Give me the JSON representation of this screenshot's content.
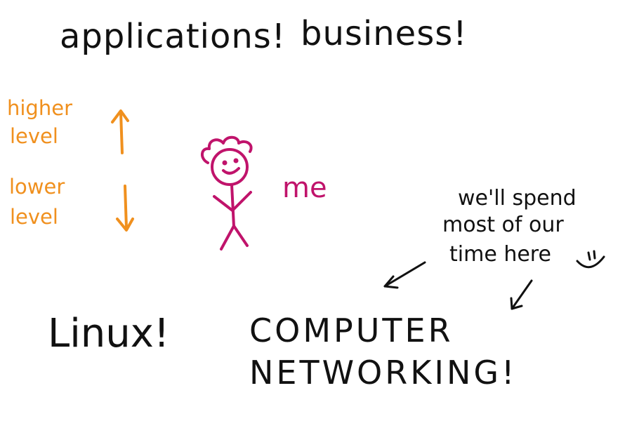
{
  "top": {
    "left": "applications!",
    "right": "business!"
  },
  "levels": {
    "higher_line1": "higher",
    "higher_line2": "level",
    "lower_line1": "lower",
    "lower_line2": "level"
  },
  "me_label": "me",
  "note": {
    "line1": "we'll spend",
    "line2": "most of our",
    "line3": "time here"
  },
  "bottom": {
    "left": "Linux!",
    "right_line1": "COMPUTER",
    "right_line2": "NETWORKING!"
  },
  "colors": {
    "text": "#111111",
    "levels": "#f0901e",
    "person": "#c0136b"
  },
  "icons": [
    "up-arrow-icon",
    "down-arrow-icon",
    "stick-figure-icon",
    "smiley-icon",
    "pointer-arrow-icon"
  ]
}
